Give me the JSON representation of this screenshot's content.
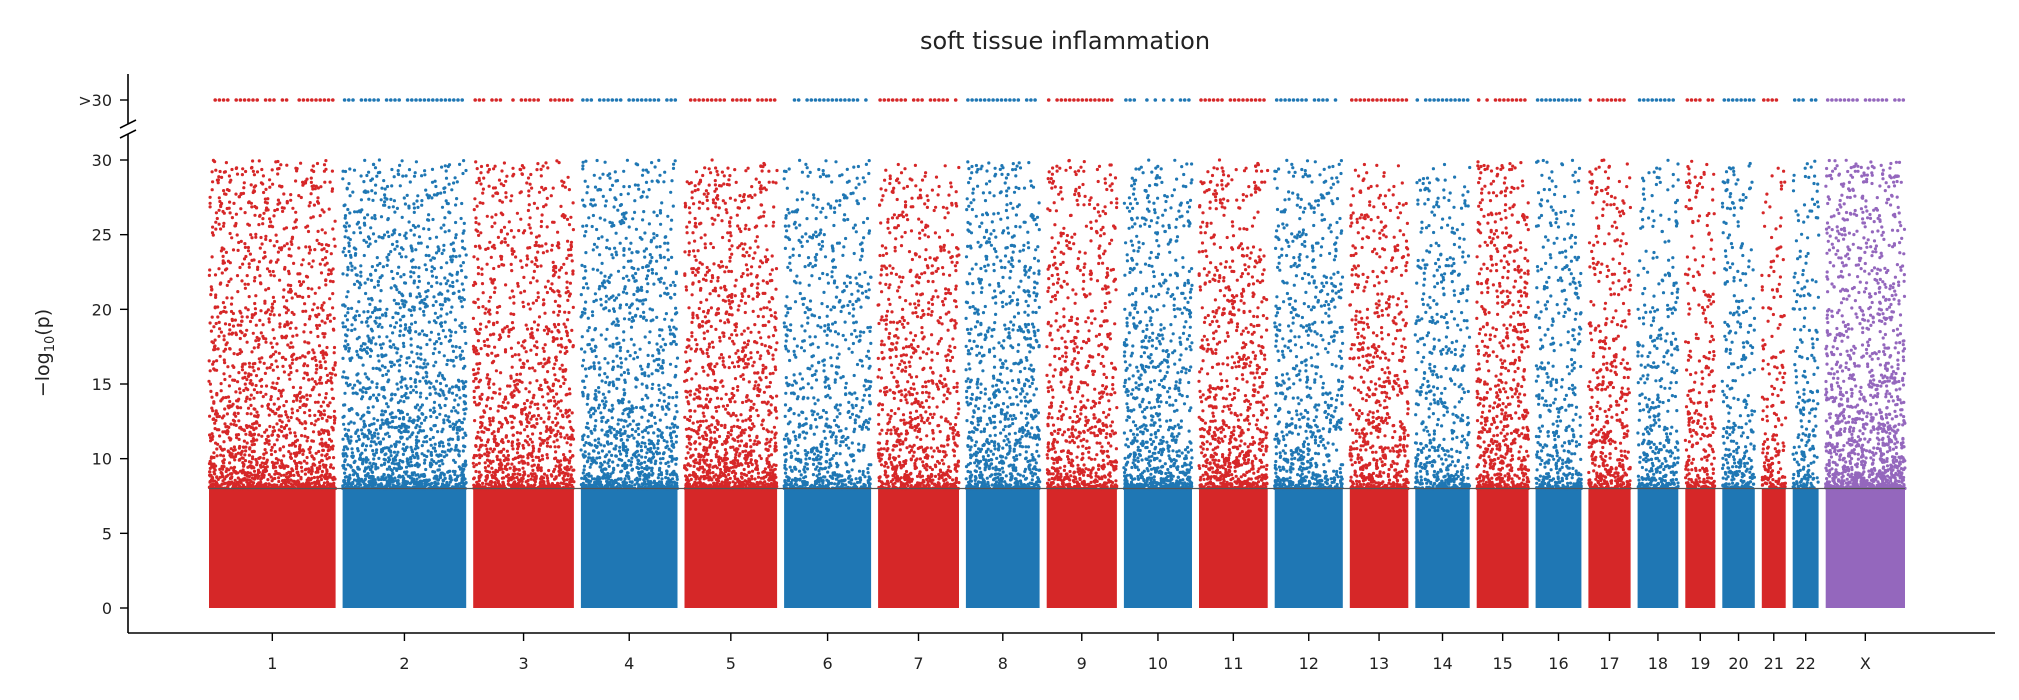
{
  "chart_data": {
    "type": "scatter",
    "title": "soft tissue inflammation",
    "xlabel": "",
    "ylabel": "−log",
    "ylabel_sub": "10",
    "ylabel_tail": "(p)",
    "ylim": [
      0,
      30
    ],
    "yticks": [
      0,
      5,
      10,
      15,
      20,
      25,
      30
    ],
    "ytick_labels": [
      "0",
      "5",
      "10",
      "15",
      "20",
      "25",
      "30"
    ],
    "overflow_label": ">30",
    "y_axis_break": true,
    "significance_threshold": 8,
    "grid": false,
    "legend": "none",
    "colors": {
      "odd": "#d62728",
      "even": "#1f77b4",
      "X": "#9467bd",
      "threshold": "#555555"
    },
    "chromosomes": [
      {
        "label": "1",
        "start": 0,
        "end": 249,
        "color": "#d62728",
        "max": 30,
        "density": 1.0
      },
      {
        "label": "2",
        "start": 249,
        "end": 492,
        "color": "#1f77b4",
        "max": 30,
        "density": 1.0
      },
      {
        "label": "3",
        "start": 492,
        "end": 690,
        "color": "#d62728",
        "max": 30,
        "density": 0.9
      },
      {
        "label": "4",
        "start": 690,
        "end": 880,
        "color": "#1f77b4",
        "max": 30,
        "density": 0.9
      },
      {
        "label": "5",
        "start": 880,
        "end": 1062,
        "color": "#d62728",
        "max": 30,
        "density": 1.0
      },
      {
        "label": "6",
        "start": 1062,
        "end": 1233,
        "color": "#1f77b4",
        "max": 30,
        "density": 0.7
      },
      {
        "label": "7",
        "start": 1233,
        "end": 1392,
        "color": "#d62728",
        "max": 30,
        "density": 0.8
      },
      {
        "label": "8",
        "start": 1392,
        "end": 1537,
        "color": "#1f77b4",
        "max": 30,
        "density": 0.9
      },
      {
        "label": "9",
        "start": 1537,
        "end": 1675,
        "color": "#d62728",
        "max": 30,
        "density": 0.8
      },
      {
        "label": "10",
        "start": 1675,
        "end": 1809,
        "color": "#1f77b4",
        "max": 30,
        "density": 0.9
      },
      {
        "label": "11",
        "start": 1809,
        "end": 1944,
        "color": "#d62728",
        "max": 30,
        "density": 0.9
      },
      {
        "label": "12",
        "start": 1944,
        "end": 2078,
        "color": "#1f77b4",
        "max": 30,
        "density": 0.8
      },
      {
        "label": "13",
        "start": 2078,
        "end": 2193,
        "color": "#d62728",
        "max": 30,
        "density": 0.8
      },
      {
        "label": "14",
        "start": 2193,
        "end": 2300,
        "color": "#1f77b4",
        "max": 30,
        "density": 0.7
      },
      {
        "label": "15",
        "start": 2300,
        "end": 2402,
        "color": "#d62728",
        "max": 30,
        "density": 1.0
      },
      {
        "label": "16",
        "start": 2402,
        "end": 2492,
        "color": "#1f77b4",
        "max": 30,
        "density": 0.7
      },
      {
        "label": "17",
        "start": 2492,
        "end": 2575,
        "color": "#d62728",
        "max": 30,
        "density": 0.8
      },
      {
        "label": "18",
        "start": 2575,
        "end": 2655,
        "color": "#1f77b4",
        "max": 30,
        "density": 0.7
      },
      {
        "label": "19",
        "start": 2655,
        "end": 2714,
        "color": "#d62728",
        "max": 30,
        "density": 0.7
      },
      {
        "label": "20",
        "start": 2714,
        "end": 2778,
        "color": "#1f77b4",
        "max": 30,
        "density": 0.7
      },
      {
        "label": "21",
        "start": 2778,
        "end": 2825,
        "color": "#d62728",
        "max": 30,
        "density": 0.6
      },
      {
        "label": "22",
        "start": 2825,
        "end": 2876,
        "color": "#1f77b4",
        "max": 30,
        "density": 0.6
      },
      {
        "label": "X",
        "start": 2876,
        "end": 3032,
        "color": "#9467bd",
        "max": 30,
        "density": 1.2
      }
    ]
  }
}
